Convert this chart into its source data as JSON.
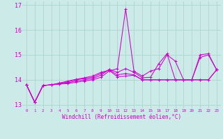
{
  "xlabel": "Windchill (Refroidissement éolien,°C)",
  "background_color": "#cceae7",
  "grid_color": "#aad4d0",
  "line_color": "#cc00cc",
  "xlim": [
    -0.5,
    23.5
  ],
  "ylim": [
    12.85,
    17.15
  ],
  "yticks": [
    13,
    14,
    15,
    16,
    17
  ],
  "xticks": [
    0,
    1,
    2,
    3,
    4,
    5,
    6,
    7,
    8,
    9,
    10,
    11,
    12,
    13,
    14,
    15,
    16,
    17,
    18,
    19,
    20,
    21,
    22,
    23
  ],
  "series": [
    [
      13.8,
      13.1,
      13.77,
      13.8,
      13.83,
      13.85,
      13.9,
      13.95,
      14.0,
      14.1,
      14.35,
      14.45,
      16.85,
      14.35,
      14.15,
      14.35,
      14.45,
      15.0,
      14.75,
      14.0,
      14.0,
      14.9,
      15.0,
      14.4
    ],
    [
      13.8,
      13.1,
      13.77,
      13.8,
      13.83,
      13.88,
      13.95,
      14.0,
      14.05,
      14.18,
      14.42,
      14.3,
      14.45,
      14.3,
      14.08,
      14.1,
      14.65,
      15.05,
      14.0,
      14.0,
      14.0,
      15.0,
      15.05,
      14.4
    ],
    [
      13.8,
      13.1,
      13.77,
      13.8,
      13.85,
      13.92,
      14.0,
      14.05,
      14.1,
      14.25,
      14.4,
      14.2,
      14.25,
      14.2,
      14.0,
      14.0,
      14.0,
      14.0,
      14.0,
      14.0,
      14.0,
      14.0,
      14.0,
      14.4
    ],
    [
      13.8,
      13.1,
      13.77,
      13.8,
      13.87,
      13.95,
      14.02,
      14.08,
      14.15,
      14.3,
      14.38,
      14.12,
      14.15,
      14.18,
      14.0,
      14.0,
      14.0,
      14.0,
      14.0,
      14.0,
      14.0,
      14.0,
      14.0,
      14.4
    ]
  ]
}
